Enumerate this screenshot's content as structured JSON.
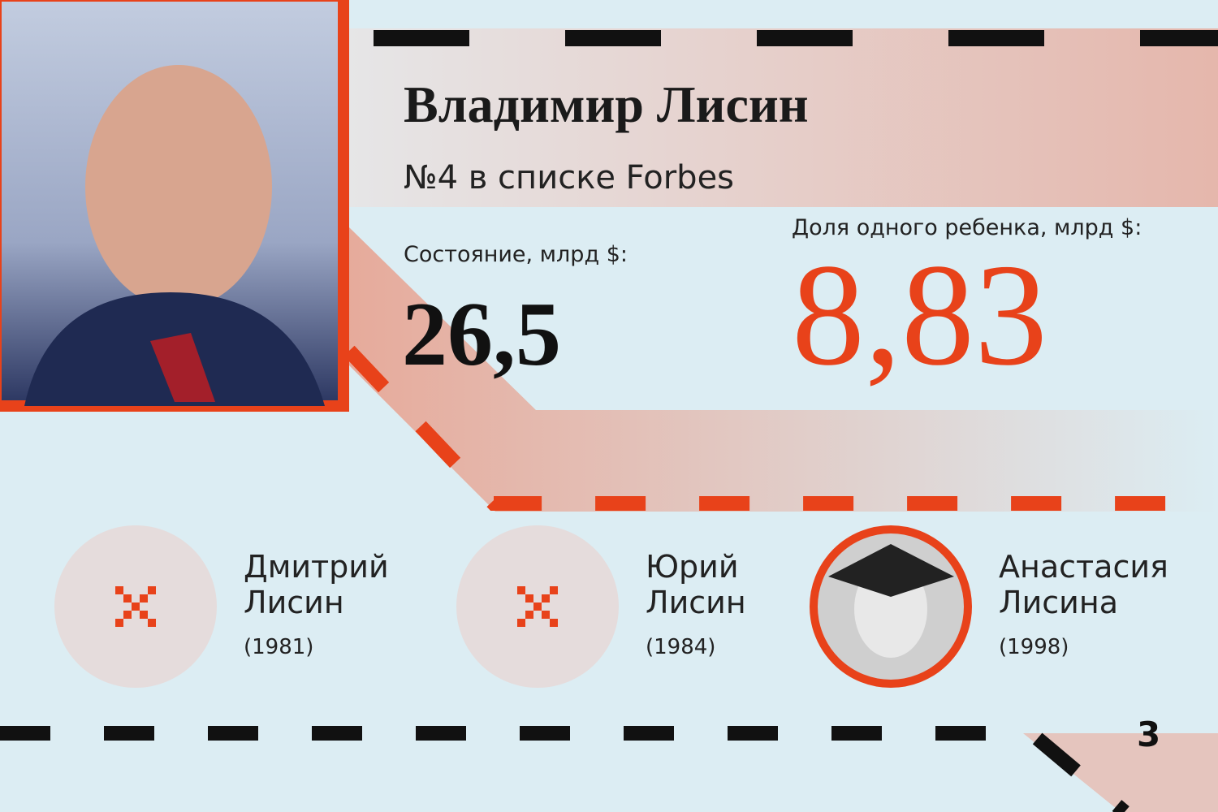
{
  "header": {
    "title": "Владимир Лисин",
    "subtitle": "№4 в списке Forbes"
  },
  "stats": {
    "wealth_label": "Состояние, млрд $:",
    "wealth": "26,5",
    "share_label": "Доля одного ребенка, млрд $:",
    "share": "8,83"
  },
  "children": [
    {
      "name": [
        "Дмитрий",
        "Лисин"
      ],
      "year": "(1981)"
    },
    {
      "name": [
        "Юрий",
        "Лисин"
      ],
      "year": "(1984)"
    },
    {
      "name": [
        "Анастасия",
        "Лисина"
      ],
      "year": "(1998)"
    }
  ],
  "page_number": "3"
}
